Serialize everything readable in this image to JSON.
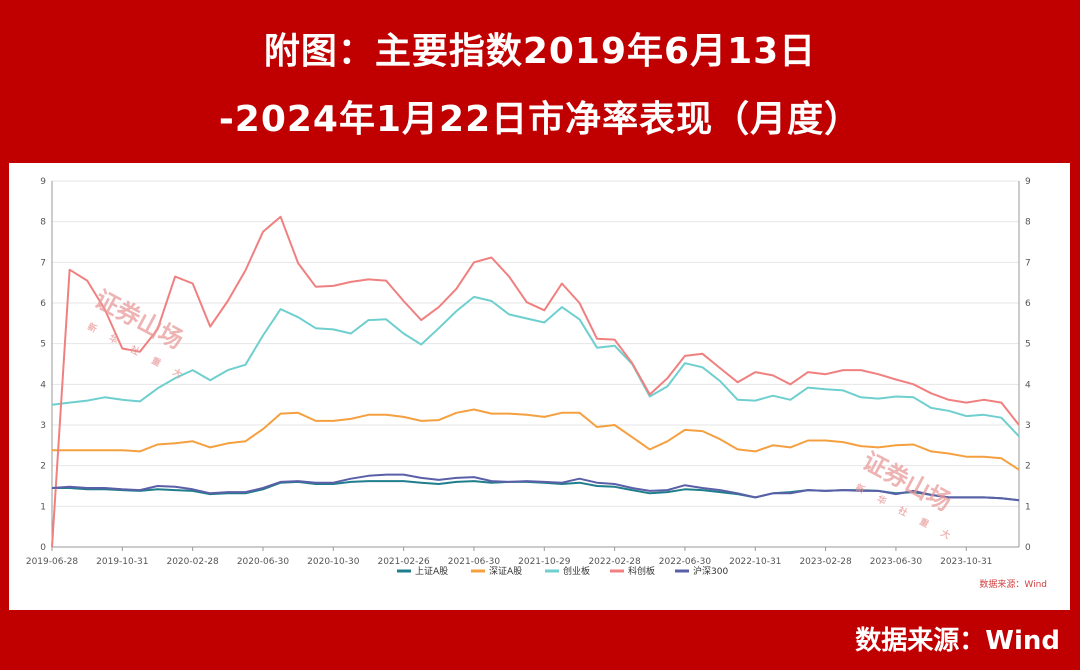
{
  "header": {
    "title_line1": "附图：主要指数2019年6月13日",
    "title_line2": "-2024年1月22日市净率表现（月度）"
  },
  "footer": {
    "source": "数据来源：Wind"
  },
  "watermark": {
    "main": "证券山场",
    "sub": "新 华 社 重 大"
  },
  "colors": {
    "background": "#c00000",
    "sse_a": "#1f7e8c",
    "szse_a": "#f5a040",
    "chinext": "#6fcfcf",
    "star": "#f08080",
    "csi300": "#5a5fa8"
  },
  "chart_data": {
    "type": "line",
    "title": "",
    "xlabel": "",
    "ylabel": "",
    "ylim": [
      0,
      9
    ],
    "yticks": [
      0,
      1,
      2,
      3,
      4,
      5,
      6,
      7,
      8,
      9
    ],
    "grid": true,
    "dual_y_axis": true,
    "legend_position": "bottom",
    "source_note": "数据来源：Wind",
    "x": [
      "2019-06-28",
      "2019-07-31",
      "2019-08-30",
      "2019-09-30",
      "2019-10-31",
      "2019-11-29",
      "2019-12-31",
      "2020-01-23",
      "2020-02-28",
      "2020-03-31",
      "2020-04-30",
      "2020-05-29",
      "2020-06-30",
      "2020-07-31",
      "2020-08-31",
      "2020-09-30",
      "2020-10-30",
      "2020-11-30",
      "2020-12-31",
      "2021-01-29",
      "2021-02-26",
      "2021-03-31",
      "2021-04-30",
      "2021-05-31",
      "2021-06-30",
      "2021-07-30",
      "2021-08-31",
      "2021-09-30",
      "2021-10-29",
      "2021-11-30",
      "2021-12-31",
      "2022-01-28",
      "2022-02-28",
      "2022-03-31",
      "2022-04-29",
      "2022-05-31",
      "2022-06-30",
      "2022-07-29",
      "2022-08-31",
      "2022-09-30",
      "2022-10-31",
      "2022-11-30",
      "2022-12-30",
      "2023-01-31",
      "2023-02-28",
      "2023-03-31",
      "2023-04-28",
      "2023-05-31",
      "2023-06-30",
      "2023-07-31",
      "2023-08-31",
      "2023-09-28",
      "2023-10-31",
      "2023-11-30",
      "2023-12-29",
      "2024-01-22"
    ],
    "x_tick_labels": [
      "2019-06-28",
      "2019-10-31",
      "2020-02-28",
      "2020-06-30",
      "2020-10-30",
      "2021-02-26",
      "2021-06-30",
      "2021-10-29",
      "2022-02-28",
      "2022-06-30",
      "2022-10-31",
      "2023-02-28",
      "2023-06-30",
      "2023-10-31"
    ],
    "series": [
      {
        "name": "上证A股",
        "color": "#1f7e8c",
        "values": [
          1.45,
          1.45,
          1.42,
          1.42,
          1.4,
          1.38,
          1.42,
          1.4,
          1.38,
          1.3,
          1.32,
          1.32,
          1.42,
          1.58,
          1.6,
          1.55,
          1.55,
          1.6,
          1.62,
          1.62,
          1.62,
          1.58,
          1.55,
          1.6,
          1.62,
          1.58,
          1.6,
          1.6,
          1.58,
          1.55,
          1.58,
          1.5,
          1.48,
          1.4,
          1.32,
          1.35,
          1.42,
          1.4,
          1.35,
          1.3,
          1.22,
          1.32,
          1.35,
          1.4,
          1.38,
          1.4,
          1.4,
          1.38,
          1.32,
          1.35,
          1.28,
          1.22,
          1.22,
          1.22,
          1.2,
          1.15
        ]
      },
      {
        "name": "深证A股",
        "color": "#f5a040",
        "values": [
          2.38,
          2.38,
          2.38,
          2.38,
          2.38,
          2.35,
          2.52,
          2.55,
          2.6,
          2.45,
          2.55,
          2.6,
          2.9,
          3.28,
          3.3,
          3.1,
          3.1,
          3.15,
          3.25,
          3.25,
          3.2,
          3.1,
          3.12,
          3.3,
          3.38,
          3.28,
          3.28,
          3.25,
          3.2,
          3.3,
          3.3,
          2.95,
          3.0,
          2.7,
          2.4,
          2.6,
          2.88,
          2.85,
          2.65,
          2.4,
          2.35,
          2.5,
          2.45,
          2.62,
          2.62,
          2.58,
          2.48,
          2.45,
          2.5,
          2.52,
          2.35,
          2.3,
          2.22,
          2.22,
          2.18,
          1.9
        ]
      },
      {
        "name": "创业板",
        "color": "#6fcfcf",
        "values": [
          3.5,
          3.55,
          3.6,
          3.68,
          3.62,
          3.58,
          3.9,
          4.15,
          4.35,
          4.1,
          4.35,
          4.48,
          5.2,
          5.85,
          5.65,
          5.38,
          5.35,
          5.25,
          5.58,
          5.6,
          5.25,
          4.98,
          5.38,
          5.8,
          6.15,
          6.05,
          5.72,
          5.62,
          5.52,
          5.9,
          5.6,
          4.9,
          4.95,
          4.5,
          3.7,
          3.95,
          4.52,
          4.42,
          4.08,
          3.62,
          3.6,
          3.72,
          3.62,
          3.92,
          3.88,
          3.85,
          3.68,
          3.65,
          3.7,
          3.68,
          3.42,
          3.35,
          3.22,
          3.25,
          3.18,
          2.72
        ]
      },
      {
        "name": "科创板",
        "color": "#f08080",
        "values": [
          0,
          6.82,
          6.55,
          5.85,
          4.88,
          4.8,
          5.35,
          6.65,
          6.48,
          5.42,
          6.05,
          6.8,
          7.75,
          8.12,
          6.98,
          6.4,
          6.42,
          6.52,
          6.58,
          6.55,
          6.05,
          5.58,
          5.9,
          6.35,
          7.0,
          7.12,
          6.65,
          6.02,
          5.82,
          6.48,
          6.0,
          5.12,
          5.1,
          4.52,
          3.75,
          4.15,
          4.7,
          4.75,
          4.4,
          4.05,
          4.3,
          4.22,
          4.0,
          4.3,
          4.25,
          4.35,
          4.35,
          4.25,
          4.12,
          4.0,
          3.78,
          3.62,
          3.55,
          3.62,
          3.55,
          3.0
        ]
      },
      {
        "name": "沪深300",
        "color": "#5a5fa8",
        "values": [
          1.45,
          1.48,
          1.45,
          1.45,
          1.42,
          1.4,
          1.5,
          1.48,
          1.42,
          1.32,
          1.35,
          1.35,
          1.45,
          1.6,
          1.62,
          1.58,
          1.58,
          1.68,
          1.75,
          1.78,
          1.78,
          1.7,
          1.65,
          1.7,
          1.72,
          1.62,
          1.6,
          1.62,
          1.6,
          1.58,
          1.68,
          1.58,
          1.55,
          1.45,
          1.38,
          1.4,
          1.52,
          1.45,
          1.4,
          1.32,
          1.22,
          1.32,
          1.32,
          1.4,
          1.38,
          1.4,
          1.38,
          1.38,
          1.3,
          1.38,
          1.28,
          1.22,
          1.22,
          1.22,
          1.2,
          1.15
        ]
      }
    ]
  }
}
